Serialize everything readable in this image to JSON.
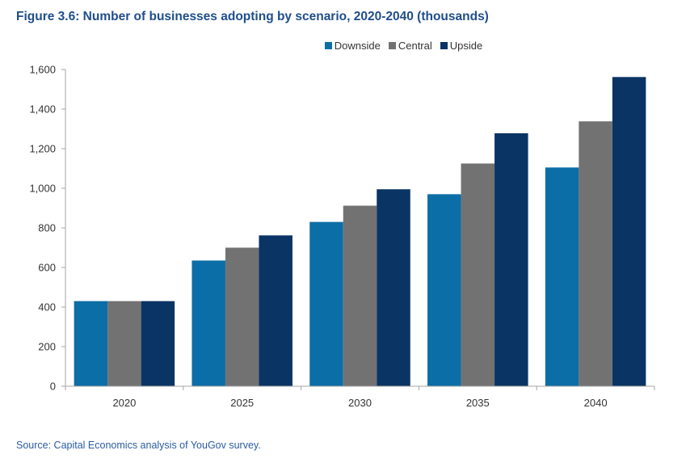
{
  "header": {
    "title": "Figure 3.6: Number of businesses adopting by scenario, 2020-2040 (thousands)"
  },
  "footer": {
    "source": "Source: Capital Economics analysis of YouGov survey."
  },
  "chart_data": {
    "type": "bar",
    "title": "Figure 3.6: Number of businesses adopting by scenario, 2020-2040 (thousands)",
    "xlabel": "",
    "ylabel": "",
    "categories": [
      "2020",
      "2025",
      "2030",
      "2035",
      "2040"
    ],
    "series": [
      {
        "name": "Downside",
        "color": "#0c6ea6",
        "values": [
          430,
          635,
          830,
          970,
          1105
        ]
      },
      {
        "name": "Central",
        "color": "#737273",
        "values": [
          430,
          700,
          912,
          1125,
          1338
        ]
      },
      {
        "name": "Upside",
        "color": "#0a3463",
        "values": [
          430,
          762,
          995,
          1278,
          1562
        ]
      }
    ],
    "ylim": [
      0,
      1600
    ],
    "yticks": [
      0,
      200,
      400,
      600,
      800,
      1000,
      1200,
      1400,
      1600
    ],
    "ytick_labels": [
      "0",
      "200",
      "400",
      "600",
      "800",
      "1,000",
      "1,200",
      "1,400",
      "1,600"
    ],
    "grid": false,
    "legend_position": "top-center"
  }
}
